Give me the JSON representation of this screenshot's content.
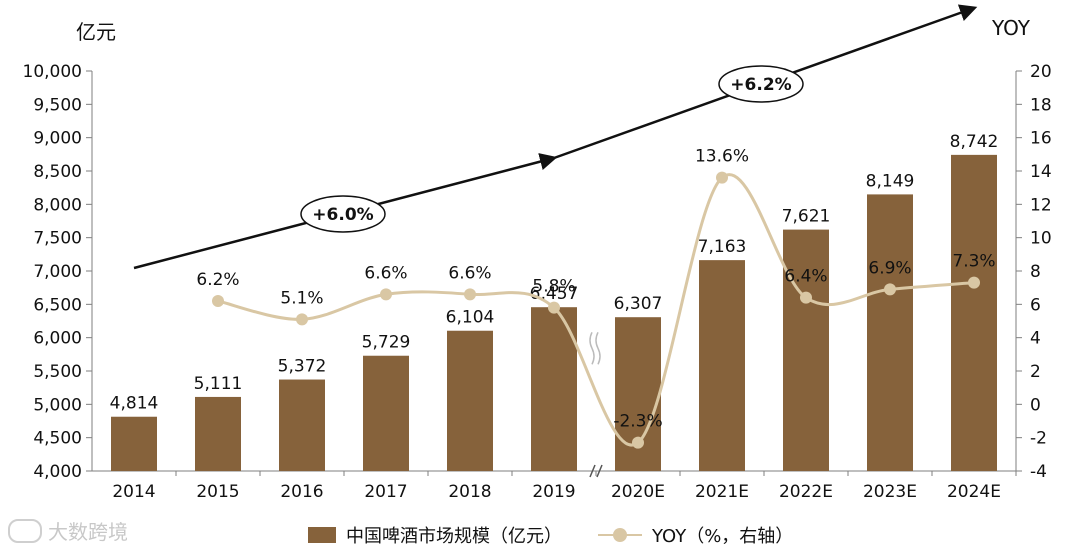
{
  "chart_data": {
    "type": "bar+line",
    "categories": [
      "2014",
      "2015",
      "2016",
      "2017",
      "2018",
      "2019",
      "2020E",
      "2021E",
      "2022E",
      "2023E",
      "2024E"
    ],
    "series": [
      {
        "name": "中国啤酒市场规模（亿元）",
        "type": "bar",
        "axis": "left",
        "values": [
          4814,
          5111,
          5372,
          5729,
          6104,
          6457,
          6307,
          7163,
          7621,
          8149,
          8742
        ],
        "labels": [
          "4,814",
          "5,111",
          "5,372",
          "5,729",
          "6,104",
          "6,457",
          "6,307",
          "7,163",
          "7,621",
          "8,149",
          "8,742"
        ]
      },
      {
        "name": "YOY（%，右轴）",
        "type": "line",
        "axis": "right",
        "values": [
          null,
          6.2,
          5.1,
          6.6,
          6.6,
          5.8,
          -2.3,
          13.6,
          6.4,
          6.9,
          7.3
        ],
        "labels": [
          "",
          "6.2%",
          "5.1%",
          "6.6%",
          "6.6%",
          "5.8%",
          "-2.3%",
          "13.6%",
          "6.4%",
          "6.9%",
          "7.3%"
        ]
      }
    ],
    "left_axis": {
      "unit": "亿元",
      "min": 4000,
      "max": 10000,
      "step": 500,
      "ticks": [
        "4,000",
        "4,500",
        "5,000",
        "5,500",
        "6,000",
        "6,500",
        "7,000",
        "7,500",
        "8,000",
        "8,500",
        "9,000",
        "9,500",
        "10,000"
      ]
    },
    "right_axis": {
      "unit": "YOY",
      "min": -4,
      "max": 20,
      "step": 2,
      "ticks": [
        "-4",
        "-2",
        "0",
        "2",
        "4",
        "6",
        "8",
        "10",
        "12",
        "14",
        "16",
        "18",
        "20"
      ]
    },
    "annotations": [
      {
        "text": "+6.0%",
        "period": "2014-2019"
      },
      {
        "text": "+6.2%",
        "period": "2019-2024E"
      }
    ],
    "axis_break_at": "2019/2020E",
    "legend": {
      "bar": "中国啤酒市场规模（亿元）",
      "line": "YOY（%，右轴）",
      "placement": "bottom"
    }
  },
  "colors": {
    "bar": "#86623b",
    "line": "#d9c7a4",
    "arrow": "#111111",
    "axis": "#7f7f7f"
  },
  "watermark": "大数跨境"
}
